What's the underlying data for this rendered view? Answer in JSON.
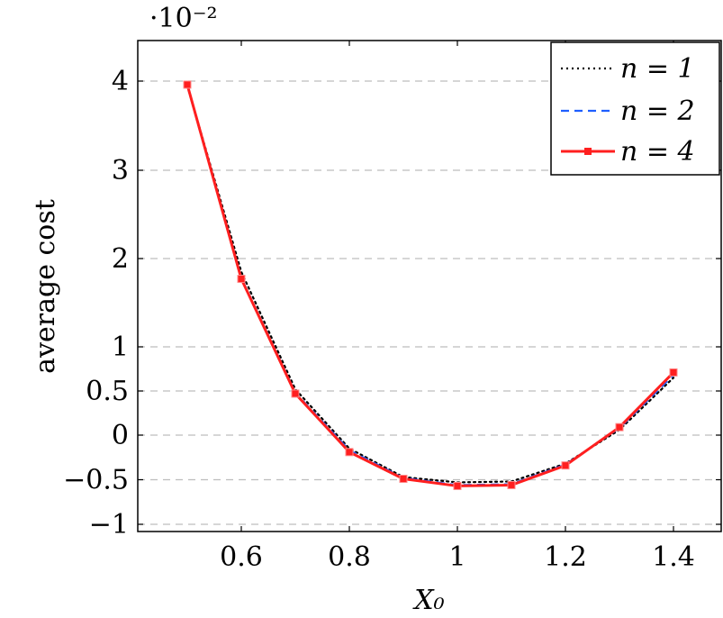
{
  "chart_data": {
    "type": "line",
    "title": "",
    "xlabel": "X₀",
    "ylabel": "average cost",
    "y_multiplier": "·10⁻²",
    "xlim": [
      0.45,
      1.45
    ],
    "ylim": [
      -1.0,
      4.4
    ],
    "xticks": [
      0.6,
      0.8,
      1.0,
      1.2,
      1.4
    ],
    "xtick_labels": [
      "0.6",
      "0.8",
      "1",
      "1.2",
      "1.4"
    ],
    "yticks": [
      -1,
      -0.5,
      0,
      0.5,
      1,
      2,
      3,
      4
    ],
    "ytick_labels": [
      "−1",
      "−0.5",
      "0",
      "0.5",
      "1",
      "2",
      "3",
      "4"
    ],
    "grid": "horizontal-dashed",
    "legend_position": "top-right",
    "x": [
      0.5,
      0.6,
      0.7,
      0.8,
      0.9,
      1.0,
      1.1,
      1.2,
      1.3,
      1.4
    ],
    "series": [
      {
        "name": "n = 1",
        "color": "#000000",
        "style": "dotted",
        "marker": "none",
        "values": [
          3.95,
          1.85,
          0.52,
          -0.15,
          -0.47,
          -0.53,
          -0.52,
          -0.32,
          0.06,
          0.65
        ]
      },
      {
        "name": "n = 2",
        "color": "#1f5fff",
        "style": "dashed",
        "marker": "none",
        "values": [
          3.95,
          1.78,
          0.48,
          -0.17,
          -0.48,
          -0.56,
          -0.55,
          -0.33,
          0.08,
          0.68
        ]
      },
      {
        "name": "n = 4",
        "color": "#ff1f1f",
        "style": "solid",
        "marker": "square",
        "values": [
          3.96,
          1.77,
          0.47,
          -0.19,
          -0.49,
          -0.57,
          -0.56,
          -0.34,
          0.09,
          0.71
        ]
      }
    ]
  }
}
